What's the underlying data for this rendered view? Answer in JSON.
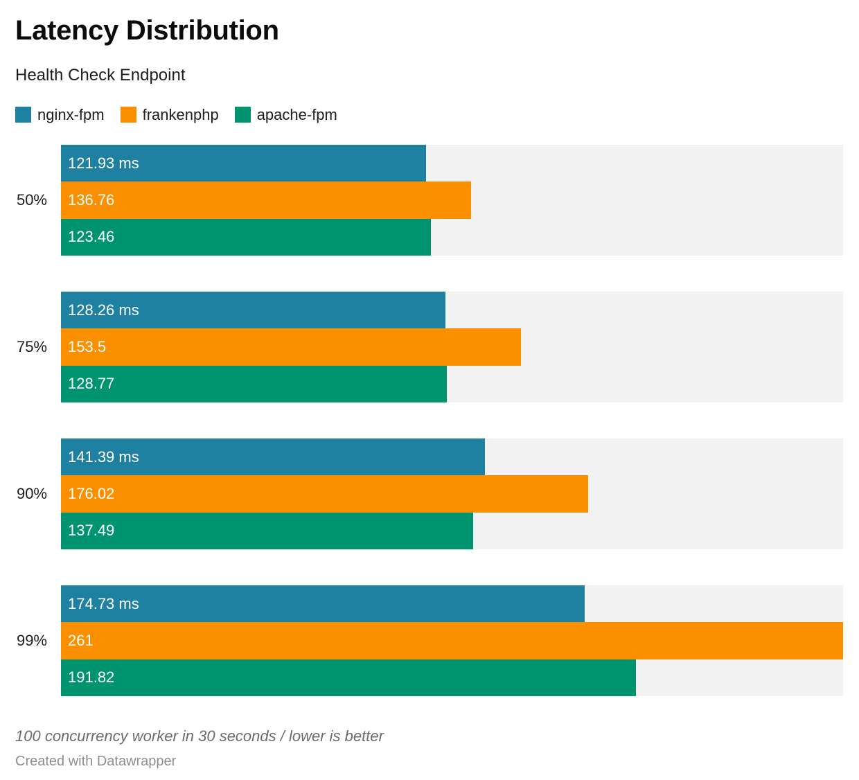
{
  "header": {
    "title": "Latency Distribution",
    "subtitle": "Health Check Endpoint"
  },
  "legend": [
    {
      "label": "nginx-fpm",
      "color": "#1f81a1"
    },
    {
      "label": "frankenphp",
      "color": "#fa9000"
    },
    {
      "label": "apache-fpm",
      "color": "#00936f"
    }
  ],
  "chart_data": {
    "type": "bar",
    "orientation": "horizontal",
    "title": "Latency Distribution",
    "subtitle": "Health Check Endpoint",
    "categories": [
      "50%",
      "75%",
      "90%",
      "99%"
    ],
    "series": [
      {
        "name": "nginx-fpm",
        "color": "#1f81a1",
        "values": [
          121.93,
          128.26,
          141.39,
          174.73
        ]
      },
      {
        "name": "frankenphp",
        "color": "#fa9000",
        "values": [
          136.76,
          153.5,
          176.02,
          261
        ]
      },
      {
        "name": "apache-fpm",
        "color": "#00936f",
        "values": [
          123.46,
          128.77,
          137.49,
          191.82
        ]
      }
    ],
    "bar_labels": [
      [
        "121.93 ms",
        "136.76",
        "123.46"
      ],
      [
        "128.26 ms",
        "153.5",
        "128.77"
      ],
      [
        "141.39 ms",
        "176.02",
        "137.49"
      ],
      [
        "174.73 ms",
        "261",
        "191.82"
      ]
    ],
    "unit": "ms",
    "xlim": [
      0,
      261
    ],
    "xmax": 261,
    "grid": false,
    "legend_position": "top",
    "track_color": "#f2f2f2",
    "label_color": "#ffffff"
  },
  "footer": {
    "note": "100 concurrency worker in 30 seconds / lower is better",
    "attribution": "Created with Datawrapper"
  }
}
